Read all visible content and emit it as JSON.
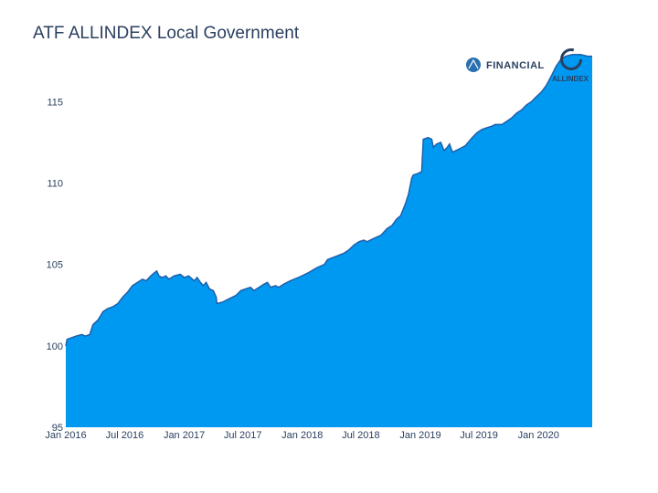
{
  "chart_data": {
    "type": "area",
    "title": "ATF ALLINDEX Local Government",
    "xlabel": "",
    "ylabel": "",
    "ylim": [
      95,
      118
    ],
    "xlim": [
      "2016-01-01",
      "2020-06-15"
    ],
    "y_ticks": [
      95,
      100,
      105,
      110,
      115
    ],
    "x_ticks": [
      {
        "date": "2016-01-01",
        "label": "Jan 2016"
      },
      {
        "date": "2016-07-01",
        "label": "Jul 2016"
      },
      {
        "date": "2017-01-01",
        "label": "Jan 2017"
      },
      {
        "date": "2017-07-01",
        "label": "Jul 2017"
      },
      {
        "date": "2018-01-01",
        "label": "Jan 2018"
      },
      {
        "date": "2018-07-01",
        "label": "Jul 2018"
      },
      {
        "date": "2019-01-01",
        "label": "Jan 2019"
      },
      {
        "date": "2019-07-01",
        "label": "Jul 2019"
      },
      {
        "date": "2020-01-01",
        "label": "Jan 2020"
      }
    ],
    "series": [
      {
        "fill_color": "#0099f2",
        "line_color": "#1f5fa8",
        "points": [
          [
            "2016-01-01",
            100.0
          ],
          [
            "2016-01-05",
            100.4
          ],
          [
            "2016-02-01",
            100.6
          ],
          [
            "2016-02-20",
            100.7
          ],
          [
            "2016-03-01",
            100.6
          ],
          [
            "2016-03-15",
            100.7
          ],
          [
            "2016-03-25",
            101.3
          ],
          [
            "2016-04-10",
            101.6
          ],
          [
            "2016-04-25",
            102.1
          ],
          [
            "2016-05-10",
            102.3
          ],
          [
            "2016-05-25",
            102.4
          ],
          [
            "2016-06-10",
            102.6
          ],
          [
            "2016-06-25",
            103.0
          ],
          [
            "2016-07-10",
            103.3
          ],
          [
            "2016-07-25",
            103.7
          ],
          [
            "2016-08-10",
            103.9
          ],
          [
            "2016-08-25",
            104.1
          ],
          [
            "2016-09-05",
            104.0
          ],
          [
            "2016-09-20",
            104.3
          ],
          [
            "2016-10-01",
            104.5
          ],
          [
            "2016-10-08",
            104.6
          ],
          [
            "2016-10-15",
            104.3
          ],
          [
            "2016-10-25",
            104.2
          ],
          [
            "2016-11-05",
            104.3
          ],
          [
            "2016-11-15",
            104.1
          ],
          [
            "2016-12-01",
            104.3
          ],
          [
            "2016-12-20",
            104.4
          ],
          [
            "2017-01-01",
            104.2
          ],
          [
            "2017-01-15",
            104.3
          ],
          [
            "2017-02-01",
            104.0
          ],
          [
            "2017-02-10",
            104.2
          ],
          [
            "2017-02-20",
            103.9
          ],
          [
            "2017-03-01",
            103.7
          ],
          [
            "2017-03-10",
            103.9
          ],
          [
            "2017-03-20",
            103.5
          ],
          [
            "2017-04-01",
            103.4
          ],
          [
            "2017-04-10",
            103.0
          ],
          [
            "2017-04-12",
            102.6
          ],
          [
            "2017-05-01",
            102.7
          ],
          [
            "2017-05-20",
            102.9
          ],
          [
            "2017-06-10",
            103.1
          ],
          [
            "2017-06-25",
            103.4
          ],
          [
            "2017-07-10",
            103.5
          ],
          [
            "2017-07-25",
            103.6
          ],
          [
            "2017-08-05",
            103.4
          ],
          [
            "2017-08-20",
            103.6
          ],
          [
            "2017-09-05",
            103.8
          ],
          [
            "2017-09-15",
            103.9
          ],
          [
            "2017-09-25",
            103.6
          ],
          [
            "2017-10-10",
            103.7
          ],
          [
            "2017-10-20",
            103.6
          ],
          [
            "2017-11-05",
            103.8
          ],
          [
            "2017-11-25",
            104.0
          ],
          [
            "2017-12-20",
            104.2
          ],
          [
            "2018-01-20",
            104.5
          ],
          [
            "2018-02-15",
            104.8
          ],
          [
            "2018-03-10",
            105.0
          ],
          [
            "2018-03-20",
            105.3
          ],
          [
            "2018-04-15",
            105.5
          ],
          [
            "2018-05-10",
            105.7
          ],
          [
            "2018-05-25",
            105.9
          ],
          [
            "2018-06-10",
            106.2
          ],
          [
            "2018-06-25",
            106.4
          ],
          [
            "2018-07-10",
            106.5
          ],
          [
            "2018-07-20",
            106.4
          ],
          [
            "2018-08-10",
            106.6
          ],
          [
            "2018-09-01",
            106.8
          ],
          [
            "2018-09-20",
            107.2
          ],
          [
            "2018-10-05",
            107.4
          ],
          [
            "2018-10-20",
            107.8
          ],
          [
            "2018-11-01",
            108.0
          ],
          [
            "2018-11-15",
            108.7
          ],
          [
            "2018-11-25",
            109.3
          ],
          [
            "2018-12-05",
            110.3
          ],
          [
            "2018-12-10",
            110.5
          ],
          [
            "2018-12-25",
            110.6
          ],
          [
            "2019-01-05",
            110.7
          ],
          [
            "2019-01-10",
            112.7
          ],
          [
            "2019-01-25",
            112.8
          ],
          [
            "2019-02-05",
            112.7
          ],
          [
            "2019-02-10",
            112.2
          ],
          [
            "2019-02-20",
            112.4
          ],
          [
            "2019-03-05",
            112.5
          ],
          [
            "2019-03-15",
            112.0
          ],
          [
            "2019-03-25",
            112.2
          ],
          [
            "2019-04-01",
            112.4
          ],
          [
            "2019-04-10",
            111.9
          ],
          [
            "2019-05-01",
            112.1
          ],
          [
            "2019-05-20",
            112.3
          ],
          [
            "2019-06-10",
            112.8
          ],
          [
            "2019-06-25",
            113.1
          ],
          [
            "2019-07-10",
            113.3
          ],
          [
            "2019-07-25",
            113.4
          ],
          [
            "2019-08-10",
            113.5
          ],
          [
            "2019-08-20",
            113.6
          ],
          [
            "2019-09-10",
            113.6
          ],
          [
            "2019-09-25",
            113.8
          ],
          [
            "2019-10-10",
            114.0
          ],
          [
            "2019-10-25",
            114.3
          ],
          [
            "2019-11-10",
            114.5
          ],
          [
            "2019-11-25",
            114.8
          ],
          [
            "2019-12-10",
            115.0
          ],
          [
            "2019-12-25",
            115.3
          ],
          [
            "2020-01-10",
            115.6
          ],
          [
            "2020-01-25",
            116.0
          ],
          [
            "2020-02-10",
            116.6
          ],
          [
            "2020-02-25",
            117.2
          ],
          [
            "2020-03-10",
            117.6
          ],
          [
            "2020-03-25",
            117.8
          ],
          [
            "2020-04-15",
            117.9
          ],
          [
            "2020-05-10",
            117.9
          ],
          [
            "2020-06-01",
            117.8
          ]
        ]
      }
    ]
  },
  "brand": {
    "logo_left_text": "FINANCIAL",
    "logo_right_text": "ALLINDEX",
    "accent": "#2a3f5f"
  }
}
